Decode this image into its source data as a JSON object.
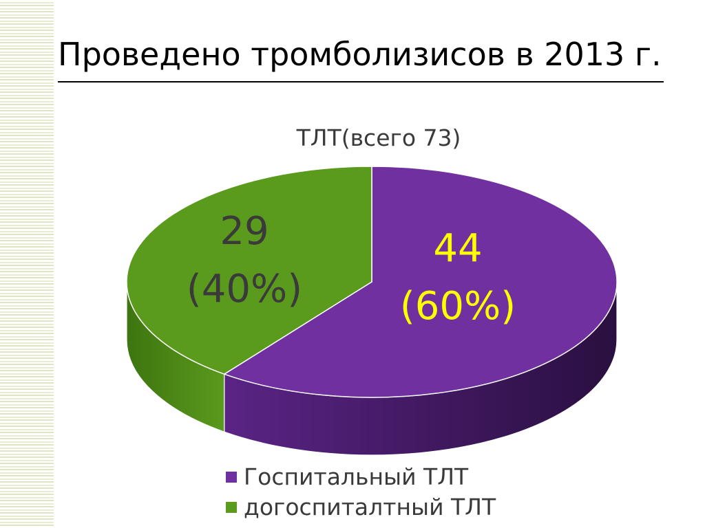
{
  "slide": {
    "title": "Проведено тромболизисов в 2013 г."
  },
  "chart_data": {
    "type": "pie",
    "title": "ТЛТ(всего 73)",
    "slices": [
      {
        "name": "Госпитальный ТЛТ",
        "value": 44,
        "value_label": "44",
        "percent_label": "(60%)",
        "color": "#7030a0",
        "label_color": "#ffff00"
      },
      {
        "name": "догоспиталтный ТЛТ",
        "value": 29,
        "value_label": "29",
        "percent_label": "(40%)",
        "color": "#5a9a1c",
        "label_color": "#3a3a3a"
      }
    ],
    "legend_position": "bottom",
    "style": "3d"
  }
}
